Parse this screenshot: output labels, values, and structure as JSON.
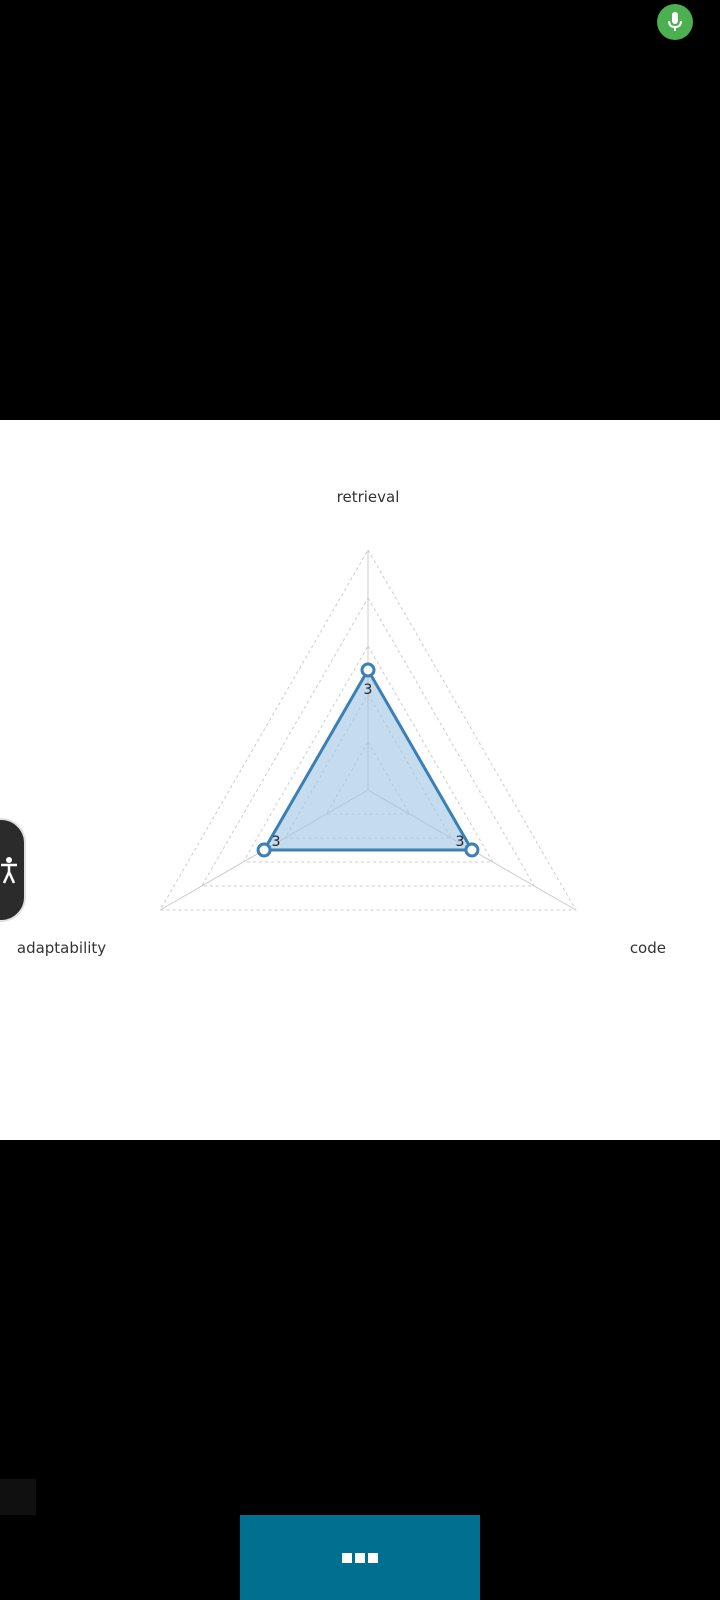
{
  "colors": {
    "background": "#000000",
    "panel": "#ffffff",
    "mic": "#4caf50",
    "series_line": "#3a7fb6",
    "series_fill": "#9ec3e2",
    "grid": "#cccccc",
    "bottom_bar": "#007090"
  },
  "icons": {
    "mic": "microphone-icon",
    "accessibility": "accessibility-person-icon",
    "menu": "three-squares-icon"
  },
  "chart_data": {
    "type": "radar",
    "axes": [
      "retrieval",
      "code",
      "adaptability"
    ],
    "series": [
      {
        "values": [
          3,
          3,
          3
        ]
      }
    ],
    "value_labels": [
      "3",
      "3",
      "3"
    ],
    "range": [
      0,
      6
    ],
    "grid_levels": 5,
    "grid": true
  }
}
